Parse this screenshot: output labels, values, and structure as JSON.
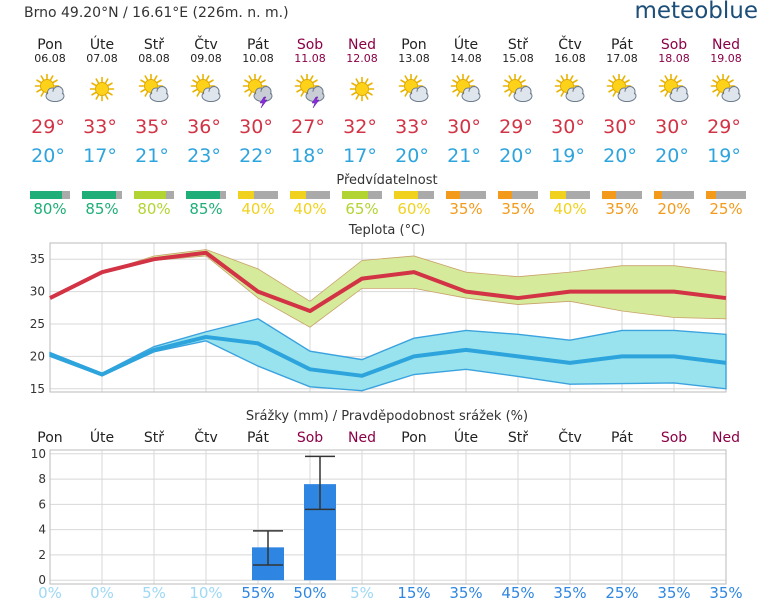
{
  "header": {
    "location": "Brno  49.20°N / 16.61°E (226m. n. m.)",
    "brand": "meteoblue"
  },
  "colors": {
    "weekday": "#222222",
    "weekend": "#8b0046",
    "max_temp": "#d23345",
    "min_temp": "#2ea4dd",
    "max_band": "#d5ea9a",
    "min_band": "#99e3ee",
    "precip_bar": "#2f86e2",
    "predict_grey": "#aaaaaa"
  },
  "days": [
    {
      "name": "Pon",
      "date": "06.08",
      "weekend": false,
      "icon": "sun-cloud-icon",
      "tmax": "29°",
      "tmin": "20°",
      "pred_label": "80%",
      "pred_color": "#1fae77",
      "precip_prob": "0%"
    },
    {
      "name": "Úte",
      "date": "07.08",
      "weekend": false,
      "icon": "sun-icon",
      "tmax": "33°",
      "tmin": "17°",
      "pred_label": "85%",
      "pred_color": "#1fae77",
      "precip_prob": "0%"
    },
    {
      "name": "Stř",
      "date": "08.08",
      "weekend": false,
      "icon": "sun-cloud-icon",
      "tmax": "35°",
      "tmin": "21°",
      "pred_label": "80%",
      "pred_color": "#b2d432",
      "precip_prob": "5%"
    },
    {
      "name": "Čtv",
      "date": "09.08",
      "weekend": false,
      "icon": "sun-cloud-icon",
      "tmax": "36°",
      "tmin": "23°",
      "pred_label": "85%",
      "pred_color": "#1fae77",
      "precip_prob": "10%"
    },
    {
      "name": "Pát",
      "date": "10.08",
      "weekend": false,
      "icon": "thunderstorm-icon",
      "tmax": "30°",
      "tmin": "22°",
      "pred_label": "40%",
      "pred_color": "#f0d21e",
      "precip_prob": "55%"
    },
    {
      "name": "Sob",
      "date": "11.08",
      "weekend": true,
      "icon": "thunderstorm-icon",
      "tmax": "27°",
      "tmin": "18°",
      "pred_label": "40%",
      "pred_color": "#f0d21e",
      "precip_prob": "50%"
    },
    {
      "name": "Ned",
      "date": "12.08",
      "weekend": true,
      "icon": "sun-icon",
      "tmax": "32°",
      "tmin": "17°",
      "pred_label": "65%",
      "pred_color": "#b2d432",
      "precip_prob": "5%"
    },
    {
      "name": "Pon",
      "date": "13.08",
      "weekend": false,
      "icon": "sun-cloud-icon",
      "tmax": "33°",
      "tmin": "20°",
      "pred_label": "60%",
      "pred_color": "#f0d21e",
      "precip_prob": "15%"
    },
    {
      "name": "Úte",
      "date": "14.08",
      "weekend": false,
      "icon": "sun-cloud-icon",
      "tmax": "30°",
      "tmin": "21°",
      "pred_label": "35%",
      "pred_color": "#f39a1a",
      "precip_prob": "35%"
    },
    {
      "name": "Stř",
      "date": "15.08",
      "weekend": false,
      "icon": "sun-cloud-icon",
      "tmax": "29°",
      "tmin": "20°",
      "pred_label": "35%",
      "pred_color": "#f39a1a",
      "precip_prob": "45%"
    },
    {
      "name": "Čtv",
      "date": "16.08",
      "weekend": false,
      "icon": "sun-cloud-icon",
      "tmax": "30°",
      "tmin": "19°",
      "pred_label": "40%",
      "pred_color": "#f0d21e",
      "precip_prob": "35%"
    },
    {
      "name": "Pát",
      "date": "17.08",
      "weekend": false,
      "icon": "sun-cloud-icon",
      "tmax": "30°",
      "tmin": "20°",
      "pred_label": "35%",
      "pred_color": "#f39a1a",
      "precip_prob": "25%"
    },
    {
      "name": "Sob",
      "date": "18.08",
      "weekend": true,
      "icon": "sun-cloud-icon",
      "tmax": "30°",
      "tmin": "20°",
      "pred_label": "20%",
      "pred_color": "#f39a1a",
      "precip_prob": "35%"
    },
    {
      "name": "Ned",
      "date": "19.08",
      "weekend": true,
      "icon": "sun-cloud-icon",
      "tmax": "29°",
      "tmin": "19°",
      "pred_label": "25%",
      "pred_color": "#f39a1a",
      "precip_prob": "35%"
    }
  ],
  "chart_data": [
    {
      "type": "bar",
      "title": "Předvídatelnost",
      "categories": [
        "06.08",
        "07.08",
        "08.08",
        "09.08",
        "10.08",
        "11.08",
        "12.08",
        "13.08",
        "14.08",
        "15.08",
        "16.08",
        "17.08",
        "18.08",
        "19.08"
      ],
      "values": [
        80,
        85,
        80,
        85,
        40,
        40,
        65,
        60,
        35,
        35,
        40,
        35,
        20,
        25
      ],
      "ylim": [
        0,
        100
      ]
    },
    {
      "type": "line",
      "title": "Teplota (°C)",
      "x": [
        "06.08",
        "07.08",
        "08.08",
        "09.08",
        "10.08",
        "11.08",
        "12.08",
        "13.08",
        "14.08",
        "15.08",
        "16.08",
        "17.08",
        "18.08",
        "19.08"
      ],
      "yticks": [
        15,
        20,
        25,
        30,
        35
      ],
      "ylim": [
        14.5,
        37.5
      ],
      "grid": true,
      "series": [
        {
          "values": [
            29,
            33,
            35,
            36,
            30,
            27,
            32,
            33,
            30,
            29,
            30,
            30,
            30,
            29
          ],
          "band_upper": [
            29,
            33,
            35.5,
            36.5,
            33.5,
            28.5,
            34.8,
            35.5,
            33,
            32.3,
            33,
            34,
            34,
            33
          ],
          "band_lower": [
            29,
            33,
            34.8,
            35.5,
            29,
            24.5,
            30.5,
            30.5,
            29,
            28,
            28.5,
            27,
            26,
            25.8
          ]
        },
        {
          "values": [
            20.3,
            17.2,
            21,
            23,
            22,
            18,
            17,
            20,
            21,
            20,
            19,
            20,
            20,
            19
          ],
          "band_upper": [
            20.6,
            17.4,
            21.5,
            23.8,
            25.8,
            20.8,
            19.5,
            22.8,
            24,
            23.4,
            22.5,
            24,
            24,
            23.4
          ],
          "band_lower": [
            20,
            17,
            20.7,
            22.4,
            18.5,
            15.3,
            14.7,
            17.2,
            18,
            16.9,
            15.7,
            15.8,
            15.9,
            15
          ]
        }
      ]
    },
    {
      "type": "bar",
      "title": "Srážky (mm) / Pravděpodobnost srážek (%)",
      "categories": [
        "Pon",
        "Úte",
        "Stř",
        "Čtv",
        "Pát",
        "Sob",
        "Ned",
        "Pon",
        "Úte",
        "Stř",
        "Čtv",
        "Pát",
        "Sob",
        "Ned"
      ],
      "values": [
        0,
        0,
        0,
        0,
        2.6,
        7.6,
        0,
        0,
        0,
        0,
        0,
        0,
        0,
        0
      ],
      "error_low": [
        0,
        0,
        0,
        0,
        1.2,
        5.6,
        0,
        0,
        0,
        0,
        0,
        0,
        0,
        0
      ],
      "error_high": [
        0,
        0,
        0,
        0,
        3.9,
        9.8,
        0,
        0,
        0,
        0,
        0,
        0,
        0,
        0
      ],
      "yticks": [
        0,
        2,
        4,
        6,
        8,
        10
      ],
      "ylim": [
        -0.3,
        10.3
      ],
      "grid": true
    }
  ]
}
